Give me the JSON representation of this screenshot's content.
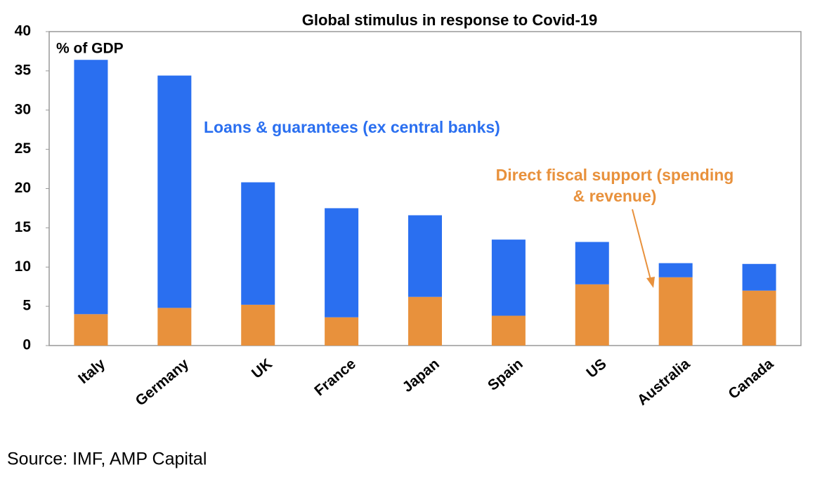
{
  "chart_data": {
    "type": "stacked_bar",
    "title": "Global stimulus in response to Covid-19",
    "y_label": "% of GDP",
    "categories": [
      "Italy",
      "Germany",
      "UK",
      "France",
      "Japan",
      "Spain",
      "US",
      "Australia",
      "Canada"
    ],
    "series": [
      {
        "name": "Direct fiscal support (spending & revenue)",
        "color": "#e8913c",
        "values": [
          4.0,
          4.8,
          5.2,
          3.6,
          6.2,
          3.8,
          7.8,
          8.7,
          7.0
        ]
      },
      {
        "name": "Loans & guarantees (ex central banks)",
        "color": "#2a6ff0",
        "values": [
          32.4,
          29.6,
          15.6,
          13.9,
          10.4,
          9.7,
          5.4,
          1.8,
          3.4
        ]
      }
    ],
    "ylim": [
      0,
      40
    ],
    "yticks": [
      0,
      5,
      10,
      15,
      20,
      25,
      30,
      35,
      40
    ],
    "grid": false,
    "source": "Source: IMF, AMP Capital"
  }
}
